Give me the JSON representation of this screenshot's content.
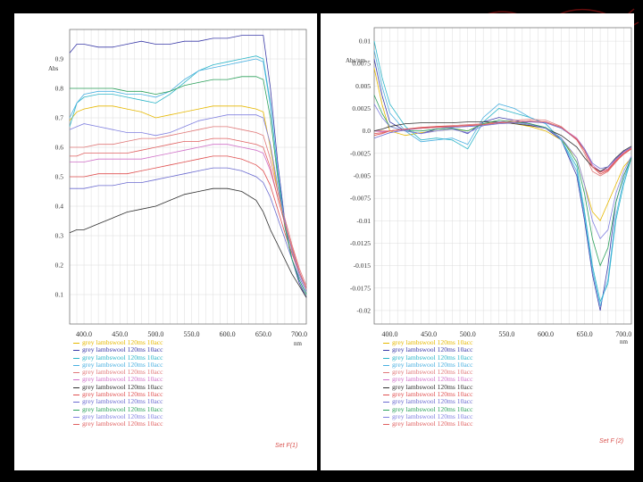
{
  "colors": {
    "background": "#000000",
    "paper": "#ffffff",
    "grid": "#dcdcdc",
    "axis": "#666666",
    "annotation": "#d9534f"
  },
  "chart_data": [
    {
      "type": "line",
      "title": "",
      "ylabel": "Abs",
      "xlabel": "nm",
      "xlim": [
        380,
        710
      ],
      "ylim": [
        0,
        1.0
      ],
      "xticks": [
        "400.0",
        "450.0",
        "500.0",
        "550.0",
        "600.0",
        "650.0",
        "700.0"
      ],
      "yticks": [
        "0.9",
        "0.8",
        "0.7",
        "0.6",
        "0.5",
        "0.4",
        "0.3",
        "0.2",
        "0.1"
      ],
      "ytick_values": [
        0.9,
        0.8,
        0.7,
        0.6,
        0.5,
        0.4,
        0.3,
        0.2,
        0.1
      ],
      "x": [
        380,
        390,
        400,
        420,
        440,
        460,
        480,
        500,
        520,
        540,
        560,
        580,
        600,
        620,
        640,
        650,
        660,
        670,
        680,
        690,
        700,
        710
      ],
      "series": [
        {
          "legend": "grey lambswool 120ms 10acc",
          "color": "#e6b800",
          "values": [
            0.69,
            0.72,
            0.73,
            0.74,
            0.74,
            0.73,
            0.72,
            0.7,
            0.71,
            0.72,
            0.73,
            0.74,
            0.74,
            0.74,
            0.73,
            0.72,
            0.6,
            0.45,
            0.35,
            0.25,
            0.17,
            0.12
          ]
        },
        {
          "legend": "grey lambswool 120ms 10acc",
          "color": "#3a3aa8",
          "values": [
            0.92,
            0.95,
            0.95,
            0.94,
            0.94,
            0.95,
            0.96,
            0.95,
            0.95,
            0.96,
            0.96,
            0.97,
            0.97,
            0.98,
            0.98,
            0.98,
            0.8,
            0.55,
            0.35,
            0.22,
            0.14,
            0.09
          ]
        },
        {
          "legend": "grey lambswool 120ms 10acc",
          "color": "#2bb5c8",
          "values": [
            0.67,
            0.75,
            0.77,
            0.78,
            0.78,
            0.77,
            0.76,
            0.75,
            0.78,
            0.82,
            0.86,
            0.88,
            0.89,
            0.9,
            0.91,
            0.9,
            0.75,
            0.52,
            0.34,
            0.22,
            0.15,
            0.1
          ]
        },
        {
          "legend": "grey lambswool 120ms 10acc",
          "color": "#4ab0e0",
          "values": [
            0.7,
            0.75,
            0.78,
            0.79,
            0.79,
            0.78,
            0.78,
            0.77,
            0.79,
            0.83,
            0.86,
            0.87,
            0.88,
            0.89,
            0.9,
            0.89,
            0.74,
            0.52,
            0.34,
            0.22,
            0.15,
            0.1
          ]
        },
        {
          "legend": "grey lambswool 120ms 10acc",
          "color": "#e07878",
          "values": [
            0.6,
            0.6,
            0.6,
            0.61,
            0.61,
            0.62,
            0.63,
            0.63,
            0.64,
            0.65,
            0.66,
            0.67,
            0.67,
            0.66,
            0.65,
            0.64,
            0.56,
            0.45,
            0.36,
            0.27,
            0.19,
            0.13
          ]
        },
        {
          "legend": "grey lambswool 120ms 10acc",
          "color": "#d070c8",
          "values": [
            0.55,
            0.55,
            0.55,
            0.56,
            0.56,
            0.56,
            0.56,
            0.57,
            0.58,
            0.59,
            0.6,
            0.61,
            0.61,
            0.6,
            0.59,
            0.58,
            0.52,
            0.43,
            0.34,
            0.26,
            0.18,
            0.12
          ]
        },
        {
          "legend": "grey lambswool 120ms 10acc",
          "color": "#303030",
          "values": [
            0.31,
            0.32,
            0.32,
            0.34,
            0.36,
            0.38,
            0.39,
            0.4,
            0.42,
            0.44,
            0.45,
            0.46,
            0.46,
            0.45,
            0.42,
            0.38,
            0.32,
            0.27,
            0.22,
            0.17,
            0.13,
            0.09
          ]
        },
        {
          "legend": "grey lambswool 120ms 10acc",
          "color": "#e05050",
          "values": [
            0.5,
            0.5,
            0.5,
            0.51,
            0.51,
            0.51,
            0.52,
            0.53,
            0.54,
            0.55,
            0.56,
            0.57,
            0.57,
            0.56,
            0.54,
            0.52,
            0.47,
            0.39,
            0.31,
            0.24,
            0.17,
            0.12
          ]
        },
        {
          "legend": "grey lambswool 120ms 10acc",
          "color": "#6a6ad0",
          "values": [
            0.46,
            0.46,
            0.46,
            0.47,
            0.47,
            0.48,
            0.48,
            0.49,
            0.5,
            0.51,
            0.52,
            0.53,
            0.53,
            0.52,
            0.5,
            0.48,
            0.43,
            0.36,
            0.29,
            0.22,
            0.16,
            0.11
          ]
        },
        {
          "legend": "grey lambswool 120ms 10acc",
          "color": "#2aa05a",
          "values": [
            0.8,
            0.8,
            0.8,
            0.8,
            0.8,
            0.79,
            0.79,
            0.78,
            0.79,
            0.81,
            0.82,
            0.83,
            0.83,
            0.84,
            0.84,
            0.83,
            0.7,
            0.5,
            0.33,
            0.22,
            0.15,
            0.1
          ]
        },
        {
          "legend": "grey lambswool 120ms 10acc",
          "color": "#8080e0",
          "values": [
            0.66,
            0.67,
            0.68,
            0.67,
            0.66,
            0.65,
            0.65,
            0.64,
            0.65,
            0.67,
            0.69,
            0.7,
            0.71,
            0.71,
            0.71,
            0.7,
            0.61,
            0.47,
            0.35,
            0.25,
            0.17,
            0.12
          ]
        },
        {
          "legend": "grey lambswool 120ms 10acc",
          "color": "#e06060",
          "values": [
            0.57,
            0.57,
            0.58,
            0.58,
            0.58,
            0.58,
            0.59,
            0.6,
            0.61,
            0.62,
            0.62,
            0.63,
            0.63,
            0.62,
            0.61,
            0.6,
            0.53,
            0.43,
            0.34,
            0.26,
            0.18,
            0.12
          ]
        }
      ],
      "annotation": "Set F(1)"
    },
    {
      "type": "line",
      "title": "",
      "ylabel": "Abs/nm",
      "xlabel": "nm",
      "xlim": [
        380,
        710
      ],
      "ylim": [
        -0.0215,
        0.0115
      ],
      "xticks": [
        "400.0",
        "450.0",
        "500.0",
        "550.0",
        "600.0",
        "650.0",
        "700.0"
      ],
      "yticks": [
        "0.01",
        "0.0075",
        "0.005",
        "0.0025",
        "0.0",
        "-0.0025",
        "-0.005",
        "-0.0075",
        "-0.01",
        "-0.0125",
        "-0.015",
        "-0.0175",
        "-0.02"
      ],
      "ytick_values": [
        0.01,
        0.0075,
        0.005,
        0.0025,
        0.0,
        -0.0025,
        -0.005,
        -0.0075,
        -0.01,
        -0.0125,
        -0.015,
        -0.0175,
        -0.02
      ],
      "x": [
        380,
        390,
        400,
        420,
        440,
        460,
        480,
        500,
        520,
        540,
        560,
        580,
        600,
        620,
        640,
        650,
        660,
        670,
        680,
        690,
        700,
        710
      ],
      "series": [
        {
          "legend": "grey lambswool 120ms 10acc",
          "color": "#e6b800",
          "values": [
            0.007,
            0.003,
            0.0,
            -0.0005,
            -0.0002,
            0.0,
            0.0002,
            0.0,
            0.0008,
            0.001,
            0.0008,
            0.0005,
            0.0,
            -0.001,
            -0.003,
            -0.006,
            -0.009,
            -0.01,
            -0.008,
            -0.006,
            -0.004,
            -0.003
          ]
        },
        {
          "legend": "grey lambswool 120ms 10acc",
          "color": "#3a3aa8",
          "values": [
            0.008,
            0.004,
            0.001,
            0.0,
            -0.0003,
            0.0002,
            0.0003,
            -0.0003,
            0.001,
            0.0015,
            0.0012,
            0.0008,
            0.0003,
            -0.001,
            -0.005,
            -0.01,
            -0.016,
            -0.02,
            -0.015,
            -0.008,
            -0.005,
            -0.003
          ]
        },
        {
          "legend": "grey lambswool 120ms 10acc",
          "color": "#2bb5c8",
          "values": [
            0.01,
            0.006,
            0.003,
            0.0005,
            -0.001,
            -0.0008,
            -0.001,
            -0.002,
            0.001,
            0.0025,
            0.002,
            0.0015,
            0.0008,
            -0.001,
            -0.004,
            -0.009,
            -0.015,
            -0.019,
            -0.017,
            -0.01,
            -0.006,
            -0.003
          ]
        },
        {
          "legend": "grey lambswool 120ms 10acc",
          "color": "#4ab0e0",
          "values": [
            0.009,
            0.005,
            0.002,
            0.0,
            -0.0012,
            -0.001,
            -0.0008,
            -0.0015,
            0.0015,
            0.003,
            0.0025,
            0.0015,
            0.0008,
            -0.001,
            -0.0045,
            -0.0095,
            -0.0155,
            -0.0195,
            -0.0165,
            -0.0095,
            -0.0055,
            -0.003
          ]
        },
        {
          "legend": "grey lambswool 120ms 10acc",
          "color": "#e07878",
          "values": [
            0.0,
            0.0,
            0.0,
            0.0002,
            0.0003,
            0.0005,
            0.0006,
            0.0007,
            0.0008,
            0.001,
            0.0012,
            0.0013,
            0.0012,
            0.0005,
            -0.001,
            -0.0025,
            -0.0045,
            -0.005,
            -0.0045,
            -0.0035,
            -0.0025,
            -0.002
          ]
        },
        {
          "legend": "grey lambswool 120ms 10acc",
          "color": "#d070c8",
          "values": [
            0.0,
            -0.0001,
            0.0,
            0.0002,
            0.0003,
            0.0004,
            0.0005,
            0.0006,
            0.0007,
            0.0009,
            0.001,
            0.0011,
            0.001,
            0.0004,
            -0.0008,
            -0.002,
            -0.0038,
            -0.0045,
            -0.0042,
            -0.0032,
            -0.0024,
            -0.0018
          ]
        },
        {
          "legend": "grey lambswool 120ms 10acc",
          "color": "#303030",
          "values": [
            0.0,
            0.0002,
            0.0005,
            0.0008,
            0.0009,
            0.0009,
            0.0009,
            0.001,
            0.001,
            0.001,
            0.0008,
            0.0006,
            0.0003,
            -0.0005,
            -0.0018,
            -0.003,
            -0.004,
            -0.0045,
            -0.004,
            -0.003,
            -0.0022,
            -0.0017
          ]
        },
        {
          "legend": "grey lambswool 120ms 10acc",
          "color": "#e05050",
          "values": [
            -0.0005,
            -0.0003,
            0.0,
            0.0002,
            0.0004,
            0.0005,
            0.0005,
            0.0006,
            0.0007,
            0.0009,
            0.001,
            0.0011,
            0.001,
            0.0004,
            -0.001,
            -0.0022,
            -0.004,
            -0.0048,
            -0.0044,
            -0.0034,
            -0.0026,
            -0.002
          ]
        },
        {
          "legend": "grey lambswool 120ms 10acc",
          "color": "#6a6ad0",
          "values": [
            -0.0008,
            -0.0005,
            -0.0002,
            0.0001,
            0.0003,
            0.0004,
            0.0004,
            0.0005,
            0.0006,
            0.0008,
            0.0009,
            0.001,
            0.0009,
            0.0003,
            -0.0009,
            -0.002,
            -0.0036,
            -0.0042,
            -0.004,
            -0.0031,
            -0.0023,
            -0.0018
          ]
        },
        {
          "legend": "grey lambswool 120ms 10acc",
          "color": "#2aa05a",
          "values": [
            0.004,
            0.002,
            0.0005,
            0.0,
            0.0,
            0.0002,
            0.0003,
            0.0,
            0.0008,
            0.0012,
            0.001,
            0.0008,
            0.0004,
            -0.0008,
            -0.0035,
            -0.007,
            -0.012,
            -0.015,
            -0.013,
            -0.008,
            -0.005,
            -0.003
          ]
        },
        {
          "legend": "grey lambswool 120ms 10acc",
          "color": "#8080e0",
          "values": [
            0.003,
            0.0015,
            0.0005,
            0.0,
            -0.0003,
            0.0,
            0.0002,
            -0.0002,
            0.0006,
            0.001,
            0.0009,
            0.0007,
            0.0003,
            -0.0008,
            -0.003,
            -0.006,
            -0.01,
            -0.012,
            -0.011,
            -0.007,
            -0.0045,
            -0.0028
          ]
        },
        {
          "legend": "grey lambswool 120ms 10acc",
          "color": "#e06060",
          "values": [
            -0.0003,
            -0.0002,
            0.0,
            0.0002,
            0.0003,
            0.0004,
            0.0005,
            0.0006,
            0.0007,
            0.0009,
            0.001,
            0.0011,
            0.001,
            0.0004,
            -0.0009,
            -0.0022,
            -0.004,
            -0.0046,
            -0.0043,
            -0.0033,
            -0.0025,
            -0.0019
          ]
        }
      ],
      "annotation": "Set F (2)"
    }
  ]
}
